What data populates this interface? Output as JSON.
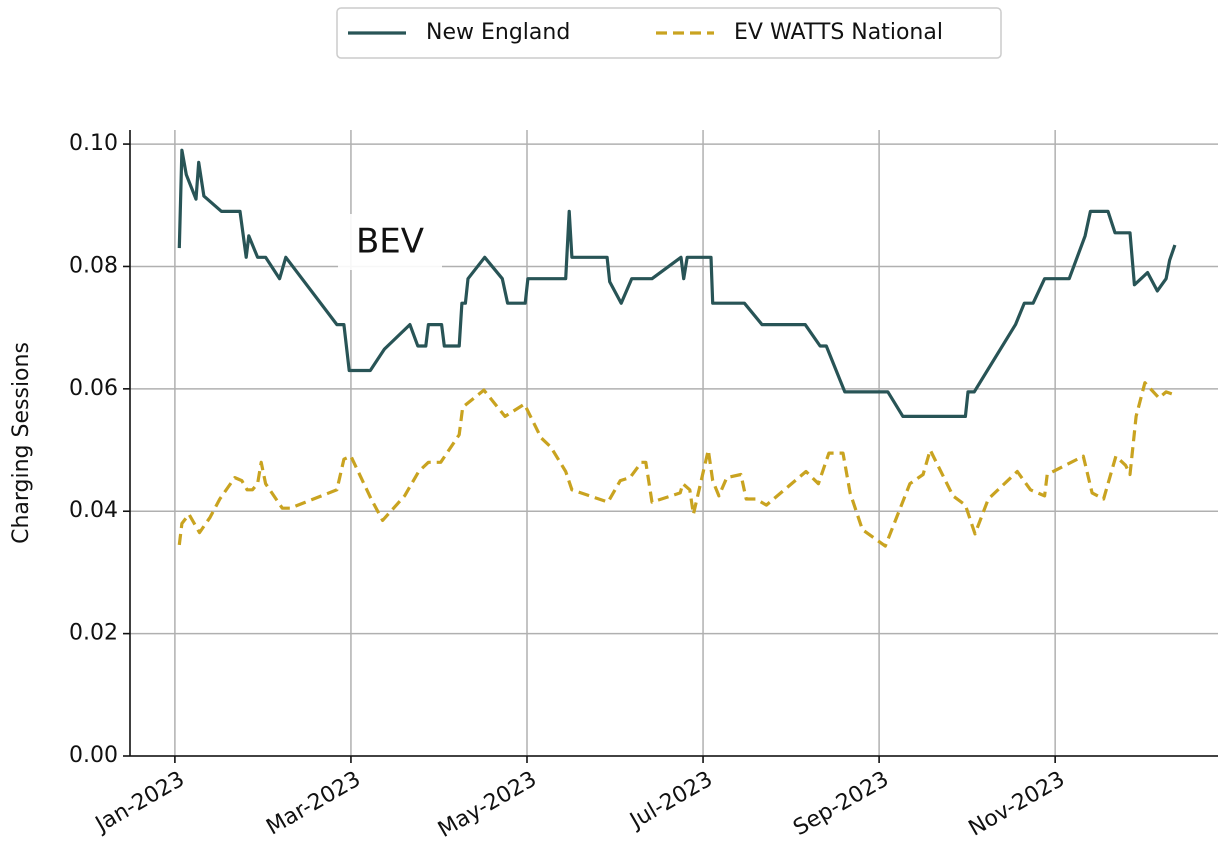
{
  "chart_data": {
    "type": "line",
    "annotation": "BEV",
    "ylabel": "Charging Sessions",
    "xlim": [
      -0.51,
      11.85
    ],
    "xticks": [
      {
        "value": 0,
        "label": "Jan-2023"
      },
      {
        "value": 2,
        "label": "Mar-2023"
      },
      {
        "value": 4,
        "label": "May-2023"
      },
      {
        "value": 6,
        "label": "Jul-2023"
      },
      {
        "value": 8,
        "label": "Sep-2023"
      },
      {
        "value": 10,
        "label": "Nov-2023"
      }
    ],
    "ylim": [
      0,
      0.1023
    ],
    "yticks": [
      {
        "value": 0,
        "label": "0.00"
      },
      0.02,
      0.04,
      0.06,
      0.08,
      {
        "value": 0.1,
        "label": "0.10"
      }
    ],
    "grid": true,
    "legend": "top",
    "series": [
      {
        "name": "New England",
        "color": "#285456",
        "dash": false,
        "x": [
          0.05,
          0.08,
          0.13,
          0.24,
          0.27,
          0.33,
          0.53,
          0.74,
          0.81,
          0.84,
          0.94,
          1.03,
          1.19,
          1.26,
          1.84,
          1.92,
          1.98,
          2.22,
          2.38,
          2.67,
          2.76,
          2.85,
          2.88,
          3.03,
          3.06,
          3.23,
          3.26,
          3.3,
          3.33,
          3.52,
          3.72,
          3.78,
          3.98,
          4.01,
          4.44,
          4.48,
          4.51,
          4.91,
          4.94,
          5.07,
          5.19,
          5.42,
          5.75,
          5.78,
          5.82,
          6.09,
          6.11,
          6.47,
          6.67,
          7.16,
          7.33,
          7.4,
          7.61,
          8.1,
          8.27,
          8.98,
          9.01,
          9.08,
          9.55,
          9.65,
          9.75,
          9.88,
          10.16,
          10.34,
          10.4,
          10.6,
          10.68,
          10.85,
          10.9,
          11.05,
          11.16,
          11.26,
          11.3,
          11.36
        ],
        "values": [
          0.083,
          0.099,
          0.095,
          0.091,
          0.097,
          0.0915,
          0.089,
          0.089,
          0.0815,
          0.085,
          0.0815,
          0.0815,
          0.078,
          0.0815,
          0.0705,
          0.0705,
          0.063,
          0.063,
          0.0665,
          0.0705,
          0.067,
          0.067,
          0.0705,
          0.0705,
          0.067,
          0.067,
          0.074,
          0.074,
          0.078,
          0.0815,
          0.078,
          0.074,
          0.074,
          0.078,
          0.078,
          0.089,
          0.0815,
          0.0815,
          0.0775,
          0.074,
          0.078,
          0.078,
          0.0815,
          0.078,
          0.0815,
          0.0815,
          0.074,
          0.074,
          0.0705,
          0.0705,
          0.067,
          0.067,
          0.0595,
          0.0595,
          0.0555,
          0.0555,
          0.0595,
          0.0595,
          0.0705,
          0.074,
          0.074,
          0.078,
          0.078,
          0.085,
          0.089,
          0.089,
          0.0855,
          0.0855,
          0.077,
          0.079,
          0.076,
          0.078,
          0.081,
          0.0835
        ]
      },
      {
        "name": "EV WATTS National",
        "color": "#c9a320",
        "dash": true,
        "x": [
          0.05,
          0.08,
          0.16,
          0.28,
          0.4,
          0.51,
          0.68,
          0.76,
          0.82,
          0.88,
          0.94,
          0.98,
          1.03,
          1.22,
          1.31,
          1.84,
          1.92,
          2.0,
          2.23,
          2.36,
          2.61,
          2.77,
          2.88,
          3.02,
          3.23,
          3.27,
          3.51,
          3.75,
          3.97,
          4.16,
          4.27,
          4.44,
          4.51,
          4.92,
          5.06,
          5.17,
          5.3,
          5.35,
          5.42,
          5.74,
          5.77,
          5.85,
          5.89,
          6.06,
          6.11,
          6.18,
          6.27,
          6.43,
          6.49,
          6.6,
          6.72,
          7.17,
          7.31,
          7.43,
          7.59,
          7.67,
          7.81,
          8.07,
          8.35,
          8.5,
          8.58,
          8.84,
          8.98,
          9.09,
          9.24,
          9.57,
          9.72,
          9.88,
          9.91,
          10.32,
          10.42,
          10.55,
          10.69,
          10.8,
          10.85,
          10.92,
          11.02,
          11.18,
          11.26,
          11.36
        ],
        "values": [
          0.0345,
          0.038,
          0.0395,
          0.0365,
          0.039,
          0.042,
          0.0455,
          0.045,
          0.0435,
          0.0435,
          0.0445,
          0.048,
          0.0445,
          0.0405,
          0.0405,
          0.0435,
          0.0485,
          0.049,
          0.042,
          0.0385,
          0.0425,
          0.0465,
          0.048,
          0.048,
          0.0525,
          0.057,
          0.0598,
          0.0555,
          0.0575,
          0.052,
          0.0505,
          0.0465,
          0.0435,
          0.0415,
          0.045,
          0.0455,
          0.048,
          0.048,
          0.0415,
          0.043,
          0.0445,
          0.0435,
          0.0395,
          0.05,
          0.045,
          0.0425,
          0.0455,
          0.046,
          0.042,
          0.042,
          0.041,
          0.0465,
          0.0445,
          0.0495,
          0.0495,
          0.043,
          0.037,
          0.0343,
          0.0445,
          0.046,
          0.05,
          0.0425,
          0.041,
          0.0363,
          0.042,
          0.0465,
          0.0435,
          0.0425,
          0.046,
          0.049,
          0.043,
          0.042,
          0.049,
          0.0475,
          0.046,
          0.0555,
          0.061,
          0.0585,
          0.0595,
          0.059
        ]
      }
    ]
  }
}
